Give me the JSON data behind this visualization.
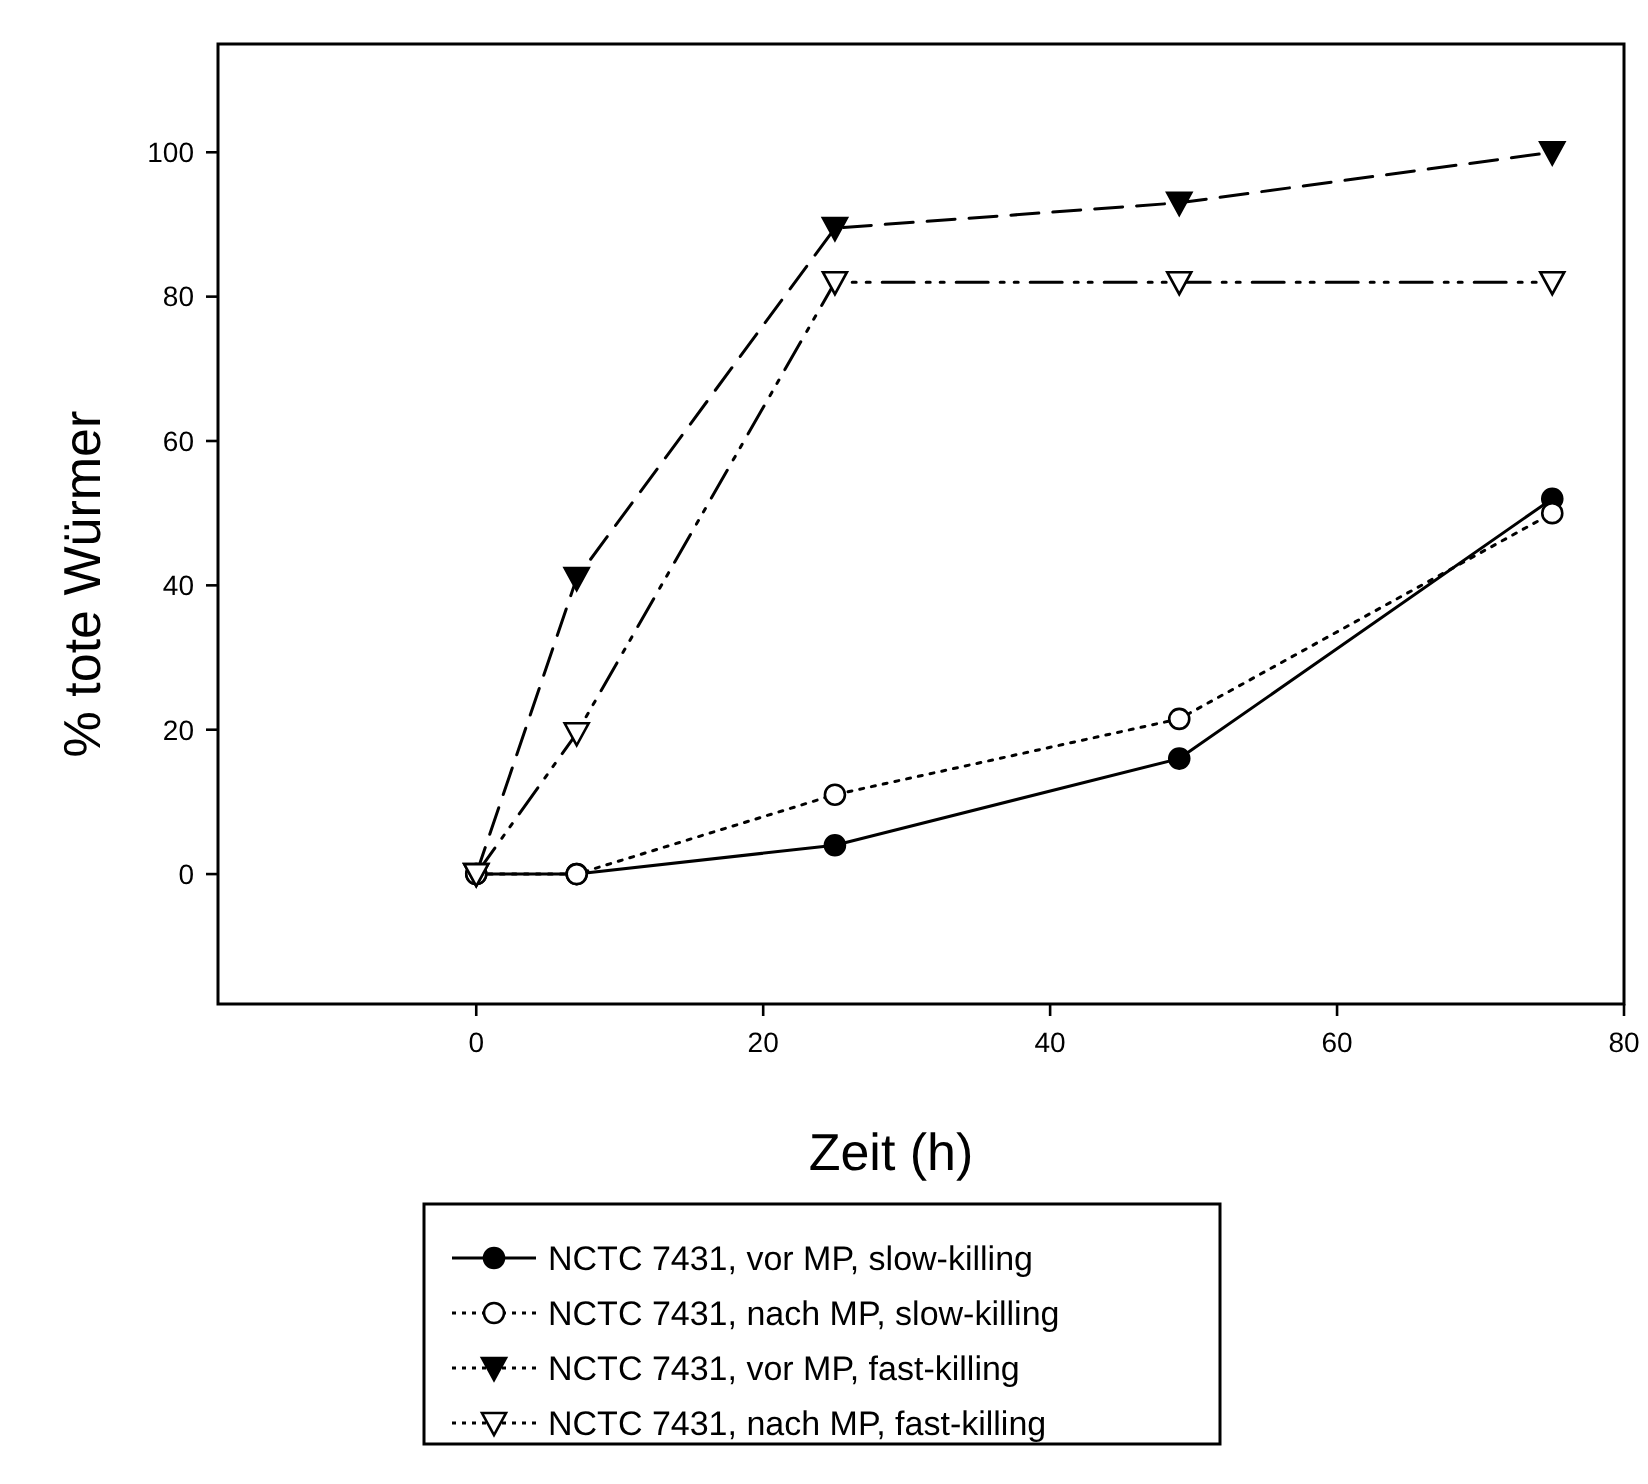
{
  "chart_data": {
    "type": "line",
    "xlabel": "Zeit (h)",
    "ylabel": "% tote Würmer",
    "xlim": [
      -18,
      80
    ],
    "xticks": [
      0,
      20,
      40,
      60,
      80
    ],
    "ylim": [
      -18,
      115
    ],
    "yticks": [
      0,
      20,
      40,
      60,
      80,
      100
    ],
    "grid": false,
    "legend": "bottom",
    "series": [
      {
        "name": "NCTC 7431, vor MP, slow-killing",
        "color": "#000000",
        "x": [
          0,
          7,
          25,
          49,
          75
        ],
        "values": [
          0,
          0,
          4,
          16,
          52
        ],
        "marker": "circle",
        "line_style": "solid"
      },
      {
        "name": "NCTC 7431, nach MP, slow-killing",
        "color": "#000000",
        "x": [
          0,
          7,
          25,
          49,
          75
        ],
        "values": [
          0,
          0,
          11,
          21.5,
          50
        ],
        "marker": "circle",
        "line_style": "dotted"
      },
      {
        "name": "NCTC 7431, vor MP, fast-killing",
        "color": "#000000",
        "x": [
          0,
          7,
          25,
          49,
          75
        ],
        "values": [
          0,
          41,
          89.5,
          93,
          100
        ],
        "marker": "triangle",
        "line_style": "dashed"
      },
      {
        "name": "NCTC 7431, nach MP, fast-killing",
        "color": "#000000",
        "x": [
          0,
          7,
          25,
          49,
          75
        ],
        "values": [
          0,
          19.5,
          82,
          82,
          82
        ],
        "marker": "triangle",
        "line_style": "dashdotdot"
      }
    ]
  }
}
